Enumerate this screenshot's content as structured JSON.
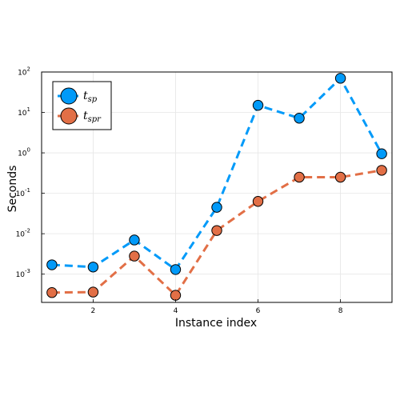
{
  "chart_data": {
    "type": "line",
    "xlabel": "Instance index",
    "ylabel": "Seconds",
    "yscale": "log",
    "xlim": [
      0.75,
      9.25
    ],
    "ylim": [
      0.0002,
      100
    ],
    "x_ticks": [
      2,
      4,
      6,
      8
    ],
    "y_ticks": [
      {
        "value": 0.001,
        "base": "10",
        "exp": "-3"
      },
      {
        "value": 0.01,
        "base": "10",
        "exp": "-2"
      },
      {
        "value": 0.1,
        "base": "10",
        "exp": "-1"
      },
      {
        "value": 1,
        "base": "10",
        "exp": "0"
      },
      {
        "value": 10,
        "base": "10",
        "exp": "1"
      },
      {
        "value": 100,
        "base": "10",
        "exp": "2"
      }
    ],
    "grid": true,
    "legend_position": "top-left",
    "x": [
      1,
      2,
      3,
      4,
      5,
      6,
      7,
      8,
      9
    ],
    "series": [
      {
        "name_main": "t",
        "name_sub": "sp",
        "color": "#009af9",
        "values": [
          0.0017,
          0.0015,
          0.007,
          0.0013,
          0.045,
          15,
          7.2,
          70,
          0.95
        ]
      },
      {
        "name_main": "t",
        "name_sub": "spr",
        "color": "#e26f46",
        "values": [
          0.00035,
          0.00036,
          0.0028,
          0.0003,
          0.012,
          0.063,
          0.25,
          0.25,
          0.37
        ]
      }
    ]
  }
}
